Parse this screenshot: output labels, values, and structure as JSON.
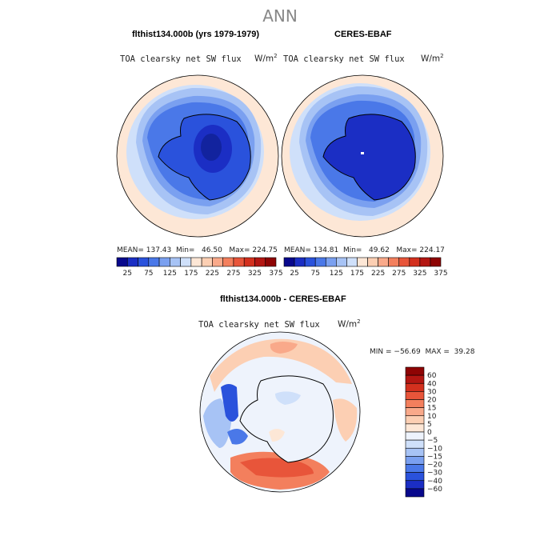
{
  "figure": {
    "title": "ANN"
  },
  "panels": [
    {
      "title": "flthist134.000b (yrs 1979-1979)",
      "variable": "TOA clearsky net SW flux",
      "units_base": "W/m",
      "units_exp": "2",
      "stats_text": "MEAN= 137.43  Min=   46.50   Max= 224.75"
    },
    {
      "title": "CERES-EBAF",
      "variable": "TOA clearsky net SW flux",
      "units_base": "W/m",
      "units_exp": "2",
      "stats_text": "MEAN= 134.81  Min=   49.62   Max= 224.17"
    },
    {
      "title": "flthist134.000b - CERES-EBAF",
      "variable": "TOA clearsky net SW flux",
      "units_base": "W/m",
      "units_exp": "2",
      "stats_text": "MIN = −56.69  MAX =  39.28"
    }
  ],
  "chart_data": [
    {
      "type": "heatmap",
      "title": "flthist134.000b (yrs 1979-1979)",
      "projection": "south polar stereographic",
      "colorbar": {
        "orientation": "horizontal",
        "tick_labels": [
          "25",
          "75",
          "125",
          "175",
          "225",
          "275",
          "325",
          "375"
        ],
        "levels": [
          25,
          50,
          75,
          100,
          125,
          150,
          175,
          200,
          225,
          250,
          275,
          300,
          325,
          350,
          375
        ],
        "colors": [
          "#08088c",
          "#1b2ec4",
          "#2a52dc",
          "#4a78e8",
          "#7aa0f0",
          "#a7c3f5",
          "#cfe0fa",
          "#fde7d6",
          "#fccfb3",
          "#f9a98a",
          "#f37f5d",
          "#e8553a",
          "#d3301e",
          "#b31612",
          "#8e0404"
        ]
      },
      "mean": 137.43,
      "min": 46.5,
      "max": 224.75
    },
    {
      "type": "heatmap",
      "title": "CERES-EBAF",
      "projection": "south polar stereographic",
      "colorbar": {
        "orientation": "horizontal",
        "tick_labels": [
          "25",
          "75",
          "125",
          "175",
          "225",
          "275",
          "325",
          "375"
        ],
        "levels": [
          25,
          50,
          75,
          100,
          125,
          150,
          175,
          200,
          225,
          250,
          275,
          300,
          325,
          350,
          375
        ],
        "colors": [
          "#08088c",
          "#1b2ec4",
          "#2a52dc",
          "#4a78e8",
          "#7aa0f0",
          "#a7c3f5",
          "#cfe0fa",
          "#fde7d6",
          "#fccfb3",
          "#f9a98a",
          "#f37f5d",
          "#e8553a",
          "#d3301e",
          "#b31612",
          "#8e0404"
        ]
      },
      "mean": 134.81,
      "min": 49.62,
      "max": 224.17
    },
    {
      "type": "heatmap",
      "title": "flthist134.000b - CERES-EBAF",
      "projection": "south polar stereographic",
      "colorbar": {
        "orientation": "vertical",
        "tick_labels": [
          "60",
          "40",
          "30",
          "20",
          "15",
          "10",
          "5",
          "0",
          "−5",
          "−10",
          "−15",
          "−20",
          "−30",
          "−40",
          "−60"
        ],
        "colors": [
          "#8e0404",
          "#b31612",
          "#d3301e",
          "#e8553a",
          "#f37f5d",
          "#f9a98a",
          "#fccfb3",
          "#fde7d6",
          "#eef3fc",
          "#cfe0fa",
          "#a7c3f5",
          "#7aa0f0",
          "#4a78e8",
          "#2a52dc",
          "#1b2ec4",
          "#08088c"
        ]
      },
      "min": -56.69,
      "max": 39.28
    }
  ]
}
